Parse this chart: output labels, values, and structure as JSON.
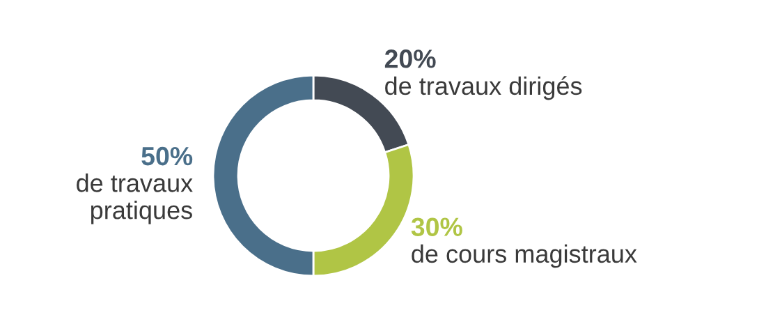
{
  "chart_data": {
    "type": "donut",
    "categories": [
      "de travaux dirigés",
      "de cours magistraux",
      "de travaux\npratiques"
    ],
    "values": [
      20,
      30,
      50
    ],
    "colors": [
      "#434a54",
      "#b0c545",
      "#4a6f8a"
    ],
    "value_labels": [
      "20%",
      "30%",
      "50%"
    ]
  }
}
